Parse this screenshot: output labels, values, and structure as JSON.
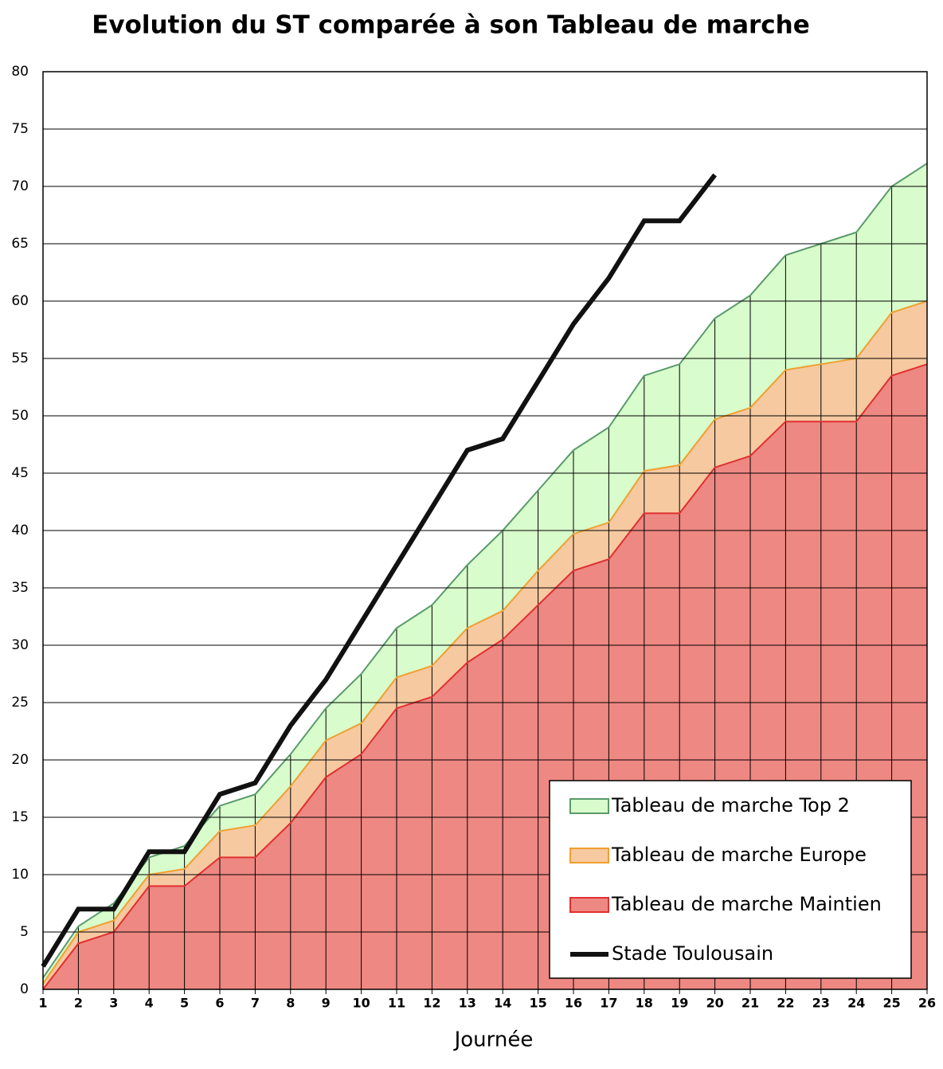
{
  "chart_data": {
    "type": "area_line",
    "title": "Evolution du ST comparée à son Tableau de marche",
    "x_label": "Journée",
    "x": [
      1,
      2,
      3,
      4,
      5,
      6,
      7,
      8,
      9,
      10,
      11,
      12,
      13,
      14,
      15,
      16,
      17,
      18,
      19,
      20,
      21,
      22,
      23,
      24,
      25,
      26
    ],
    "xlim": [
      1,
      26
    ],
    "ylim": [
      0,
      80
    ],
    "yticks": [
      0,
      5,
      10,
      15,
      20,
      25,
      30,
      35,
      40,
      45,
      50,
      55,
      60,
      65,
      70,
      75,
      80
    ],
    "grid": true,
    "legend": "lower right",
    "series": [
      {
        "name": "Tableau de marche Top 2",
        "kind": "area",
        "color": "#d8fccc",
        "edge": "#5a9a6a",
        "values": [
          1,
          5.5,
          7.5,
          11.5,
          12.5,
          16,
          17,
          20.5,
          24.5,
          27.5,
          31.5,
          33.5,
          37,
          40,
          43.5,
          47,
          49,
          53.5,
          54.5,
          58.5,
          60.5,
          64,
          65,
          66,
          70,
          72
        ]
      },
      {
        "name": "Tableau de marche Europe",
        "kind": "area",
        "color": "#f6c9a0",
        "edge": "#f0a030",
        "values": [
          0.5,
          5,
          6,
          10,
          10.5,
          13.8,
          14.3,
          17.7,
          21.7,
          23.2,
          27.2,
          28.2,
          31.5,
          33,
          36.5,
          39.7,
          40.7,
          45.2,
          45.7,
          49.7,
          50.7,
          54,
          54.5,
          55,
          59,
          60
        ]
      },
      {
        "name": "Tableau de marche Maintien",
        "kind": "area",
        "color": "#ee8882",
        "edge": "#e03030",
        "values": [
          0,
          4,
          5,
          9,
          9,
          11.5,
          11.5,
          14.5,
          18.5,
          20.5,
          24.5,
          25.5,
          28.5,
          30.5,
          33.5,
          36.5,
          37.5,
          41.5,
          41.5,
          45.5,
          46.5,
          49.5,
          49.5,
          49.5,
          53.5,
          54.5
        ]
      },
      {
        "name": "Stade Toulousain",
        "kind": "line",
        "color": "#111111",
        "values": [
          2,
          7,
          7,
          12,
          12,
          17,
          18,
          23,
          27,
          32,
          37,
          42,
          47,
          48,
          53,
          58,
          62,
          67,
          67,
          71,
          null,
          null,
          null,
          null,
          null,
          null
        ]
      }
    ]
  }
}
